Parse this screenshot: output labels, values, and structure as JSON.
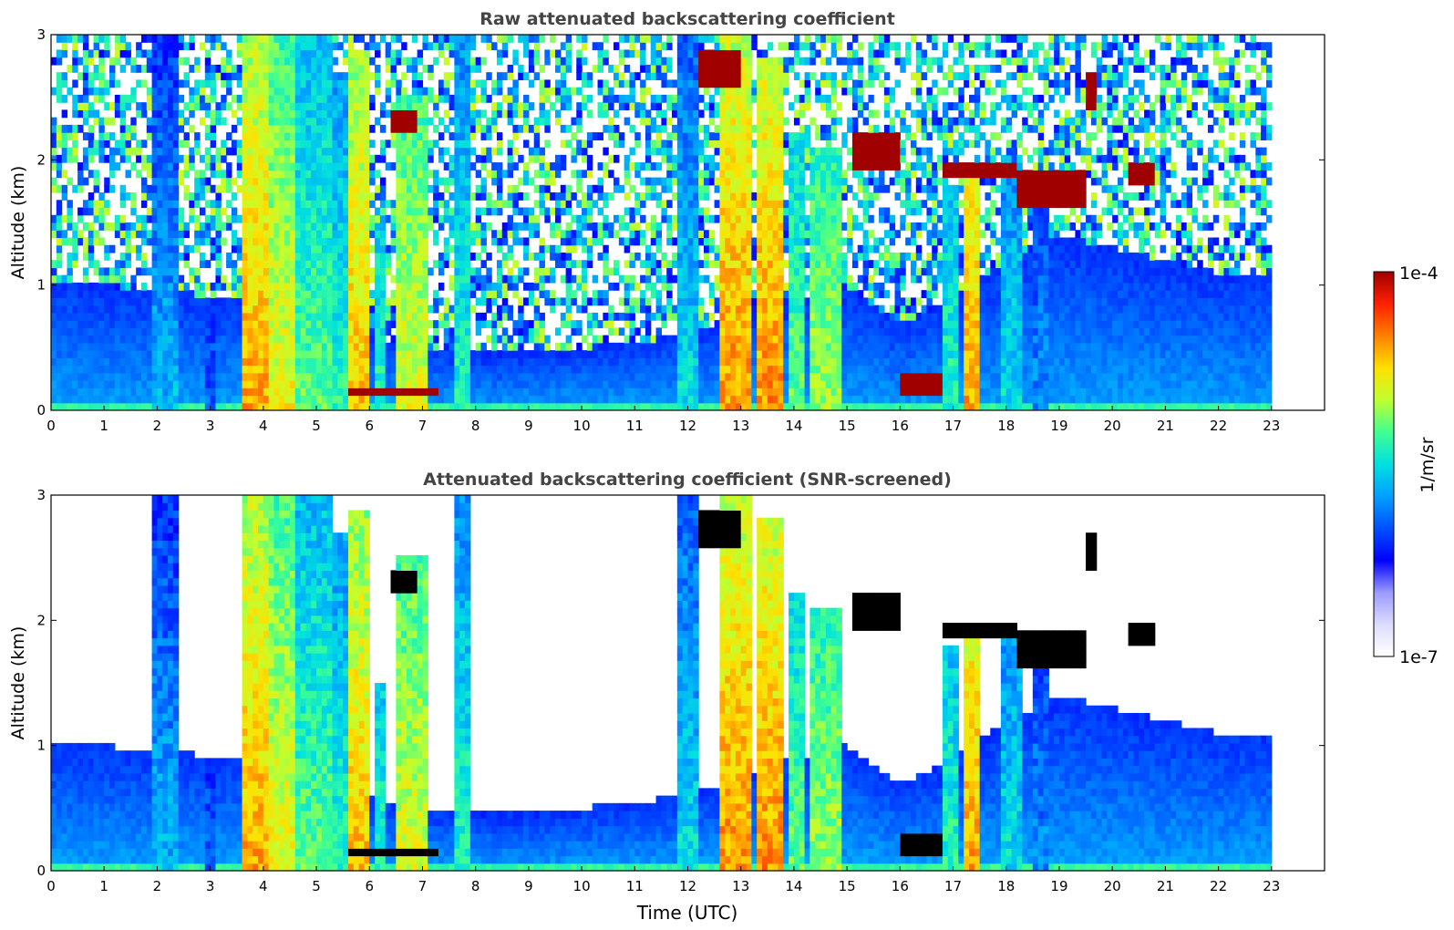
{
  "chart_data": [
    {
      "type": "heatmap",
      "title": "Raw attenuated backscattering coefficient",
      "xlabel": "",
      "ylabel": "Altitude (km)",
      "xlim": [
        0,
        24
      ],
      "ylim": [
        0,
        3
      ],
      "xticks": [
        "0",
        "1",
        "2",
        "3",
        "4",
        "5",
        "6",
        "7",
        "8",
        "9",
        "10",
        "11",
        "12",
        "13",
        "14",
        "15",
        "16",
        "17",
        "18",
        "19",
        "20",
        "21",
        "22",
        "23"
      ],
      "yticks": [
        "0",
        "1",
        "2",
        "3"
      ],
      "data_end_hour": 23,
      "screened": false,
      "boundary_layer_top_km": [
        [
          0,
          1.05
        ],
        [
          1,
          1.0
        ],
        [
          2,
          0.95
        ],
        [
          3,
          0.92
        ],
        [
          3.6,
          0.9
        ],
        [
          5,
          0.8
        ],
        [
          6,
          0.6
        ],
        [
          7,
          0.5
        ],
        [
          8,
          0.45
        ],
        [
          9,
          0.45
        ],
        [
          10,
          0.5
        ],
        [
          11,
          0.55
        ],
        [
          12,
          0.6
        ],
        [
          13,
          0.75
        ],
        [
          14,
          0.9
        ],
        [
          15,
          1.0
        ],
        [
          16,
          0.7
        ],
        [
          17,
          0.9
        ],
        [
          18,
          1.2
        ],
        [
          19,
          1.4
        ],
        [
          20,
          1.3
        ],
        [
          21,
          1.2
        ],
        [
          22,
          1.1
        ],
        [
          23,
          1.1
        ]
      ],
      "precip_shafts": [
        {
          "start": 1.9,
          "end": 2.4,
          "top": 3.0,
          "level": 0.45
        },
        {
          "start": 2.9,
          "end": 3.1,
          "top": 0.8,
          "level": 0.35
        },
        {
          "start": 3.6,
          "end": 4.1,
          "top": 3.0,
          "level": 0.8
        },
        {
          "start": 4.1,
          "end": 4.6,
          "top": 3.0,
          "level": 0.72
        },
        {
          "start": 4.6,
          "end": 5.3,
          "top": 3.0,
          "level": 0.6
        },
        {
          "start": 5.3,
          "end": 5.6,
          "top": 2.7,
          "level": 0.55
        },
        {
          "start": 5.6,
          "end": 6.0,
          "top": 2.9,
          "level": 0.78
        },
        {
          "start": 6.1,
          "end": 6.3,
          "top": 1.5,
          "level": 0.55
        },
        {
          "start": 6.5,
          "end": 7.1,
          "top": 2.5,
          "level": 0.7
        },
        {
          "start": 7.6,
          "end": 7.9,
          "top": 3.0,
          "level": 0.55
        },
        {
          "start": 11.8,
          "end": 12.2,
          "top": 3.0,
          "level": 0.5
        },
        {
          "start": 12.6,
          "end": 13.2,
          "top": 3.0,
          "level": 0.82
        },
        {
          "start": 13.3,
          "end": 13.8,
          "top": 2.8,
          "level": 0.82
        },
        {
          "start": 13.9,
          "end": 14.2,
          "top": 2.2,
          "level": 0.6
        },
        {
          "start": 14.3,
          "end": 14.9,
          "top": 2.1,
          "level": 0.65
        },
        {
          "start": 16.8,
          "end": 17.1,
          "top": 1.8,
          "level": 0.55
        },
        {
          "start": 17.2,
          "end": 17.5,
          "top": 2.0,
          "level": 0.8
        },
        {
          "start": 17.9,
          "end": 18.3,
          "top": 1.9,
          "level": 0.5
        },
        {
          "start": 18.5,
          "end": 18.8,
          "top": 1.7,
          "level": 0.4
        }
      ],
      "cloud_layers": [
        {
          "start": 5.6,
          "end": 7.3,
          "base": 0.1,
          "top": 0.2
        },
        {
          "start": 6.4,
          "end": 6.9,
          "base": 2.2,
          "top": 2.4
        },
        {
          "start": 12.2,
          "end": 13.0,
          "base": 2.6,
          "top": 2.9
        },
        {
          "start": 15.1,
          "end": 16.0,
          "base": 1.9,
          "top": 2.2
        },
        {
          "start": 16.0,
          "end": 16.8,
          "base": 0.15,
          "top": 0.3
        },
        {
          "start": 16.8,
          "end": 18.2,
          "base": 1.85,
          "top": 2.0
        },
        {
          "start": 18.2,
          "end": 19.5,
          "base": 1.65,
          "top": 1.9
        },
        {
          "start": 19.5,
          "end": 19.7,
          "base": 2.4,
          "top": 2.7
        },
        {
          "start": 20.3,
          "end": 20.8,
          "base": 1.8,
          "top": 2.0
        }
      ]
    },
    {
      "type": "heatmap",
      "title": "Attenuated backscattering coefficient (SNR-screened)",
      "xlabel": "Time (UTC)",
      "ylabel": "Altitude (km)",
      "xlim": [
        0,
        24
      ],
      "ylim": [
        0,
        3
      ],
      "xticks": [
        "0",
        "1",
        "2",
        "3",
        "4",
        "5",
        "6",
        "7",
        "8",
        "9",
        "10",
        "11",
        "12",
        "13",
        "14",
        "15",
        "16",
        "17",
        "18",
        "19",
        "20",
        "21",
        "22",
        "23"
      ],
      "yticks": [
        "0",
        "1",
        "2",
        "3"
      ],
      "data_end_hour": 23,
      "screened": true
    }
  ],
  "colorbar": {
    "label": "1/m/sr",
    "max_label": "1e-4",
    "min_label": "1e-7",
    "colormap": [
      "#ffffff",
      "#dcdcff",
      "#9a9aff",
      "#0000ff",
      "#0050ff",
      "#00a0ff",
      "#00e0e0",
      "#40ff90",
      "#c0ff30",
      "#ffe000",
      "#ff8000",
      "#ff2000",
      "#a00000"
    ]
  }
}
